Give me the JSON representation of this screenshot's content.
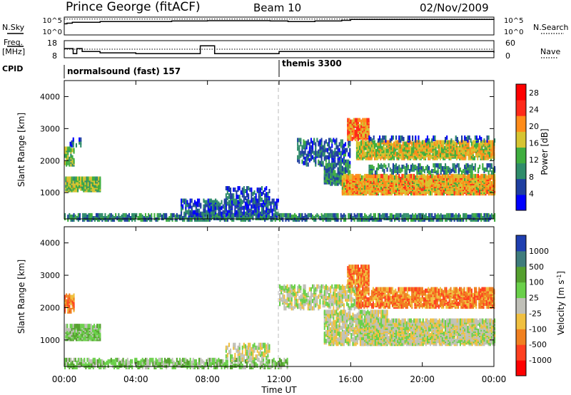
{
  "header": {
    "station": "Prince George (fitACF)",
    "beam": "Beam 10",
    "date": "02/Nov/2009"
  },
  "side_labels": {
    "nsky": "N.Sky",
    "freq_line1": "Freq.",
    "freq_line2": "[MHz]",
    "cpid": "CPID",
    "nsearch": "N.Search",
    "nave": "Nave"
  },
  "cpid_segments": [
    {
      "label": "normalsound (fast) 157",
      "start_hour": 0
    },
    {
      "label": "themis 3300",
      "start_hour": 12
    }
  ],
  "strip_axes": {
    "nsky_ticks": [
      "10^5",
      "10^0"
    ],
    "nsearch_ticks": [
      "10^5",
      "10^0"
    ],
    "freq_ticks": [
      "18",
      "8"
    ],
    "nave_ticks": [
      "60",
      "0"
    ]
  },
  "chart_data": [
    {
      "type": "line",
      "panel": "noise",
      "series": [
        {
          "name": "N.Sky",
          "x": [
            0,
            0.15,
            0.4,
            0.45,
            2.0,
            6.0,
            8.0,
            11.5,
            12.5,
            14.0,
            15.5,
            16.0,
            20.0,
            24.0
          ],
          "y": [
            3.1,
            3.3,
            3.3,
            3.6,
            3.8,
            4.0,
            4.1,
            4.0,
            3.8,
            4.0,
            4.2,
            4.5,
            4.5,
            4.4
          ]
        },
        {
          "name": "N.Search",
          "x": [
            0,
            4,
            8,
            12,
            16,
            20,
            24
          ],
          "y": [
            4.6,
            4.6,
            4.6,
            4.6,
            4.6,
            4.6,
            4.6
          ]
        }
      ],
      "y_range": [
        0,
        5
      ]
    },
    {
      "type": "line",
      "panel": "freq-nave",
      "series": [
        {
          "name": "Freq",
          "x": [
            0,
            0.25,
            0.5,
            0.7,
            1.0,
            2.0,
            4.0,
            7.5,
            7.6,
            8.3,
            8.4,
            11.9,
            12.0,
            24.0
          ],
          "y": [
            13.4,
            13.4,
            10.2,
            13.4,
            11.5,
            10.7,
            10.2,
            10.2,
            15.2,
            15.2,
            10.2,
            10.2,
            11.5,
            10.8
          ]
        },
        {
          "name": "Nave",
          "x": [
            0,
            24
          ],
          "y": [
            30,
            30
          ]
        }
      ],
      "ylim": [
        8,
        18
      ],
      "y2lim": [
        0,
        60
      ]
    },
    {
      "type": "heatmap",
      "panel": "power",
      "xlabel": "",
      "ylabel": "Slant Range [km]",
      "xlim": [
        0,
        24
      ],
      "ylim": [
        180,
        4500
      ],
      "y_ticks": [
        1000,
        2000,
        3000,
        4000
      ],
      "colorbar": {
        "label": "Power [dB]",
        "ticks": [
          4,
          8,
          12,
          16,
          20,
          24,
          28
        ],
        "range": [
          0,
          30
        ],
        "colors": [
          "#0000ff",
          "#1f3fa0",
          "#2f8c6a",
          "#3fae3f",
          "#d6c431",
          "#ff8c1a",
          "#ff2a1a",
          "#ff0000"
        ]
      },
      "regions": [
        {
          "x": [
            0.05,
            2.0
          ],
          "y": [
            1100,
            1500
          ],
          "v": 14,
          "d": 0.95
        },
        {
          "x": [
            0.0,
            0.5
          ],
          "y": [
            1900,
            2400
          ],
          "v": 13,
          "d": 0.6
        },
        {
          "x": [
            0.3,
            0.9
          ],
          "y": [
            2500,
            2700
          ],
          "v": 6,
          "d": 0.3
        },
        {
          "x": [
            0.0,
            24.0
          ],
          "y": [
            180,
            320
          ],
          "v": 9,
          "d": 0.6
        },
        {
          "x": [
            6.5,
            12.0
          ],
          "y": [
            320,
            800
          ],
          "v": 6,
          "d": 0.45
        },
        {
          "x": [
            9.0,
            11.5
          ],
          "y": [
            800,
            1200
          ],
          "v": 6,
          "d": 0.35
        },
        {
          "x": [
            13.0,
            16.0
          ],
          "y": [
            1900,
            2700
          ],
          "v": 7,
          "d": 0.35
        },
        {
          "x": [
            14.5,
            16.0
          ],
          "y": [
            1300,
            1900
          ],
          "v": 9,
          "d": 0.6
        },
        {
          "x": [
            15.5,
            24.0
          ],
          "y": [
            1000,
            1550
          ],
          "v": 19,
          "d": 0.85
        },
        {
          "x": [
            16.3,
            24.0
          ],
          "y": [
            2100,
            2600
          ],
          "v": 17,
          "d": 0.75
        },
        {
          "x": [
            15.8,
            17.0
          ],
          "y": [
            2700,
            3300
          ],
          "v": 21,
          "d": 0.75
        },
        {
          "x": [
            17.0,
            24.0
          ],
          "y": [
            2650,
            2750
          ],
          "v": 6,
          "d": 0.35
        },
        {
          "x": [
            17.0,
            24.0
          ],
          "y": [
            1650,
            1900
          ],
          "v": 9,
          "d": 0.35
        }
      ]
    },
    {
      "type": "heatmap",
      "panel": "velocity",
      "xlabel": "Time UT",
      "ylabel": "Slant Range [km]",
      "xlim": [
        0,
        24
      ],
      "ylim": [
        180,
        4500
      ],
      "x_ticks": [
        "00:00",
        "04:00",
        "08:00",
        "12:00",
        "16:00",
        "20:00",
        "00:00"
      ],
      "y_ticks": [
        1000,
        2000,
        3000,
        4000
      ],
      "colorbar": {
        "label": "Velocity [m s^-1]",
        "ticks": [
          "1000",
          "500",
          "100",
          "25",
          "-25",
          "-100",
          "-500",
          "-1000"
        ],
        "colors": [
          "#1f3fb0",
          "#3f7c7c",
          "#55a02f",
          "#6ad04a",
          "#c0c0b8",
          "#f0c040",
          "#f08020",
          "#ff4020",
          "#ff0000"
        ]
      },
      "regions": [
        {
          "x": [
            0.05,
            2.0
          ],
          "y": [
            1050,
            1500
          ],
          "c": 3,
          "d": 0.85
        },
        {
          "x": [
            0.0,
            0.5
          ],
          "y": [
            1900,
            2400
          ],
          "c": 6,
          "d": 0.6
        },
        {
          "x": [
            0.0,
            12.5
          ],
          "y": [
            180,
            420
          ],
          "c": 3,
          "d": 0.5
        },
        {
          "x": [
            9.0,
            11.5
          ],
          "y": [
            420,
            900
          ],
          "c": 4,
          "d": 0.4
        },
        {
          "x": [
            12.0,
            16.5
          ],
          "y": [
            2000,
            2700
          ],
          "c": 4,
          "d": 0.45
        },
        {
          "x": [
            14.5,
            18.0
          ],
          "y": [
            900,
            1900
          ],
          "c": 4,
          "d": 0.6
        },
        {
          "x": [
            16.5,
            24.0
          ],
          "y": [
            900,
            1650
          ],
          "c": 4,
          "d": 0.8
        },
        {
          "x": [
            16.3,
            24.0
          ],
          "y": [
            2050,
            2600
          ],
          "c": 6,
          "d": 0.7
        },
        {
          "x": [
            15.8,
            17.0
          ],
          "y": [
            2700,
            3300
          ],
          "c": 6,
          "d": 0.75
        }
      ]
    }
  ]
}
